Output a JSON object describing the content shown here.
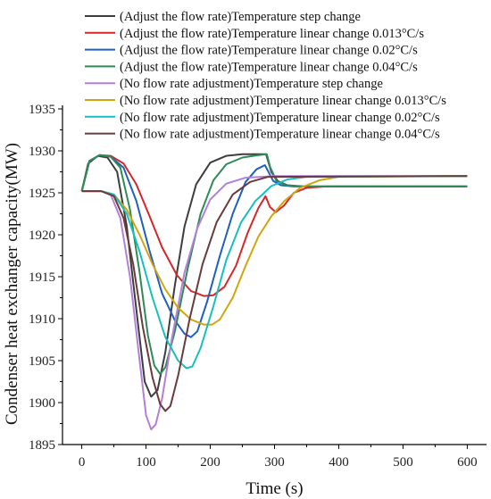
{
  "chart_data": {
    "type": "line",
    "title": "",
    "xlabel": "Time (s)",
    "ylabel": "Condenser heat exchanger capacity(MW)",
    "xlim": [
      -30,
      630
    ],
    "ylim": [
      1895,
      1935
    ],
    "xticks": [
      0,
      100,
      200,
      300,
      400,
      500,
      600
    ],
    "yticks": [
      1895,
      1900,
      1905,
      1910,
      1915,
      1920,
      1925,
      1930,
      1935
    ],
    "grid": false,
    "legend_position": "top",
    "series": [
      {
        "name": "(Adjust the flow rate)Temperature step change",
        "color": "#3d3d3d",
        "points": [
          [
            0,
            1925.2
          ],
          [
            10,
            1928.5
          ],
          [
            25,
            1929.4
          ],
          [
            40,
            1929.2
          ],
          [
            55,
            1927.5
          ],
          [
            70,
            1921
          ],
          [
            85,
            1911
          ],
          [
            98,
            1902.5
          ],
          [
            108,
            1900.7
          ],
          [
            118,
            1901.5
          ],
          [
            130,
            1906
          ],
          [
            145,
            1914
          ],
          [
            160,
            1921
          ],
          [
            178,
            1926
          ],
          [
            200,
            1928.6
          ],
          [
            225,
            1929.4
          ],
          [
            250,
            1929.6
          ],
          [
            275,
            1929.6
          ],
          [
            287,
            1929.6
          ],
          [
            295,
            1927.5
          ],
          [
            305,
            1926.4
          ],
          [
            320,
            1925.9
          ],
          [
            345,
            1925.75
          ],
          [
            600,
            1925.75
          ]
        ]
      },
      {
        "name": "(Adjust the flow rate)Temperature linear change 0.013°C/s",
        "color": "#d62728",
        "points": [
          [
            0,
            1925.2
          ],
          [
            12,
            1928.8
          ],
          [
            28,
            1929.5
          ],
          [
            45,
            1929.4
          ],
          [
            65,
            1928.5
          ],
          [
            85,
            1926
          ],
          [
            105,
            1922.3
          ],
          [
            125,
            1918.5
          ],
          [
            148,
            1915.2
          ],
          [
            170,
            1913.3
          ],
          [
            190,
            1912.7
          ],
          [
            205,
            1912.8
          ],
          [
            222,
            1913.8
          ],
          [
            240,
            1916.3
          ],
          [
            258,
            1920.2
          ],
          [
            275,
            1923.2
          ],
          [
            286,
            1924.6
          ],
          [
            293,
            1923.3
          ],
          [
            302,
            1922.7
          ],
          [
            315,
            1923.5
          ],
          [
            330,
            1925
          ],
          [
            350,
            1925.6
          ],
          [
            380,
            1925.75
          ],
          [
            600,
            1925.75
          ]
        ]
      },
      {
        "name": "(Adjust the flow rate)Temperature linear change 0.02°C/s",
        "color": "#1f5fbf",
        "points": [
          [
            0,
            1925.2
          ],
          [
            12,
            1928.8
          ],
          [
            28,
            1929.5
          ],
          [
            45,
            1929.3
          ],
          [
            65,
            1928
          ],
          [
            85,
            1924
          ],
          [
            105,
            1918.2
          ],
          [
            125,
            1913
          ],
          [
            145,
            1909.8
          ],
          [
            160,
            1908.2
          ],
          [
            170,
            1907.8
          ],
          [
            180,
            1908.5
          ],
          [
            195,
            1912
          ],
          [
            215,
            1917.5
          ],
          [
            235,
            1922.5
          ],
          [
            255,
            1926.3
          ],
          [
            272,
            1927.8
          ],
          [
            285,
            1928.3
          ],
          [
            290,
            1927.6
          ],
          [
            298,
            1926.4
          ],
          [
            310,
            1925.9
          ],
          [
            330,
            1925.75
          ],
          [
            600,
            1925.75
          ]
        ]
      },
      {
        "name": "(Adjust the flow rate)Temperature linear change 0.04°C/s",
        "color": "#2e8b57",
        "points": [
          [
            0,
            1925.2
          ],
          [
            12,
            1928.8
          ],
          [
            28,
            1929.5
          ],
          [
            45,
            1929.3
          ],
          [
            60,
            1928
          ],
          [
            75,
            1923
          ],
          [
            90,
            1915.5
          ],
          [
            103,
            1908
          ],
          [
            113,
            1904.4
          ],
          [
            122,
            1903.4
          ],
          [
            130,
            1904.2
          ],
          [
            145,
            1908.5
          ],
          [
            165,
            1916
          ],
          [
            185,
            1922.5
          ],
          [
            205,
            1926.5
          ],
          [
            225,
            1928.4
          ],
          [
            250,
            1929.2
          ],
          [
            275,
            1929.5
          ],
          [
            288,
            1929.6
          ],
          [
            293,
            1928.1
          ],
          [
            303,
            1926.4
          ],
          [
            318,
            1925.9
          ],
          [
            340,
            1925.75
          ],
          [
            600,
            1925.75
          ]
        ]
      },
      {
        "name": "(No flow rate adjustment)Temperature step change",
        "color": "#b47fd6",
        "points": [
          [
            0,
            1925.2
          ],
          [
            30,
            1925.2
          ],
          [
            45,
            1924.8
          ],
          [
            60,
            1922
          ],
          [
            75,
            1915
          ],
          [
            90,
            1905
          ],
          [
            100,
            1898.5
          ],
          [
            108,
            1896.8
          ],
          [
            115,
            1897.4
          ],
          [
            125,
            1900.5
          ],
          [
            140,
            1907.5
          ],
          [
            160,
            1915.5
          ],
          [
            180,
            1920.8
          ],
          [
            200,
            1924.2
          ],
          [
            225,
            1926.1
          ],
          [
            255,
            1926.8
          ],
          [
            300,
            1927
          ],
          [
            600,
            1927
          ]
        ]
      },
      {
        "name": "(No flow rate adjustment)Temperature linear change 0.013°C/s",
        "color": "#d4a40f",
        "points": [
          [
            0,
            1925.2
          ],
          [
            30,
            1925.2
          ],
          [
            50,
            1924.8
          ],
          [
            70,
            1923
          ],
          [
            90,
            1920
          ],
          [
            110,
            1916.5
          ],
          [
            130,
            1913.5
          ],
          [
            150,
            1911.3
          ],
          [
            170,
            1909.9
          ],
          [
            190,
            1909.3
          ],
          [
            203,
            1909.3
          ],
          [
            215,
            1909.9
          ],
          [
            235,
            1912.5
          ],
          [
            255,
            1916.3
          ],
          [
            275,
            1919.8
          ],
          [
            295,
            1922.2
          ],
          [
            315,
            1924
          ],
          [
            340,
            1925.6
          ],
          [
            370,
            1926.5
          ],
          [
            400,
            1926.9
          ],
          [
            600,
            1927
          ]
        ]
      },
      {
        "name": "(No flow rate adjustment)Temperature linear change 0.02°C/s",
        "color": "#17bfbf",
        "points": [
          [
            0,
            1925.2
          ],
          [
            30,
            1925.2
          ],
          [
            50,
            1924.8
          ],
          [
            70,
            1922.5
          ],
          [
            90,
            1918
          ],
          [
            110,
            1912.5
          ],
          [
            130,
            1907.8
          ],
          [
            150,
            1905
          ],
          [
            163,
            1904.1
          ],
          [
            172,
            1904.3
          ],
          [
            185,
            1906.5
          ],
          [
            205,
            1911.5
          ],
          [
            225,
            1917
          ],
          [
            248,
            1921.5
          ],
          [
            270,
            1924
          ],
          [
            295,
            1925.8
          ],
          [
            320,
            1926.6
          ],
          [
            350,
            1926.9
          ],
          [
            600,
            1927
          ]
        ]
      },
      {
        "name": "(No flow rate adjustment)Temperature linear change 0.04°C/s",
        "color": "#6b3a3a",
        "points": [
          [
            0,
            1925.2
          ],
          [
            30,
            1925.2
          ],
          [
            50,
            1924.6
          ],
          [
            65,
            1922
          ],
          [
            80,
            1916.5
          ],
          [
            95,
            1909
          ],
          [
            110,
            1903
          ],
          [
            122,
            1899.8
          ],
          [
            130,
            1899
          ],
          [
            138,
            1899.6
          ],
          [
            150,
            1903.2
          ],
          [
            168,
            1910
          ],
          [
            188,
            1916.5
          ],
          [
            210,
            1921.5
          ],
          [
            235,
            1924.8
          ],
          [
            262,
            1926.3
          ],
          [
            290,
            1926.9
          ],
          [
            600,
            1927
          ]
        ]
      }
    ]
  }
}
